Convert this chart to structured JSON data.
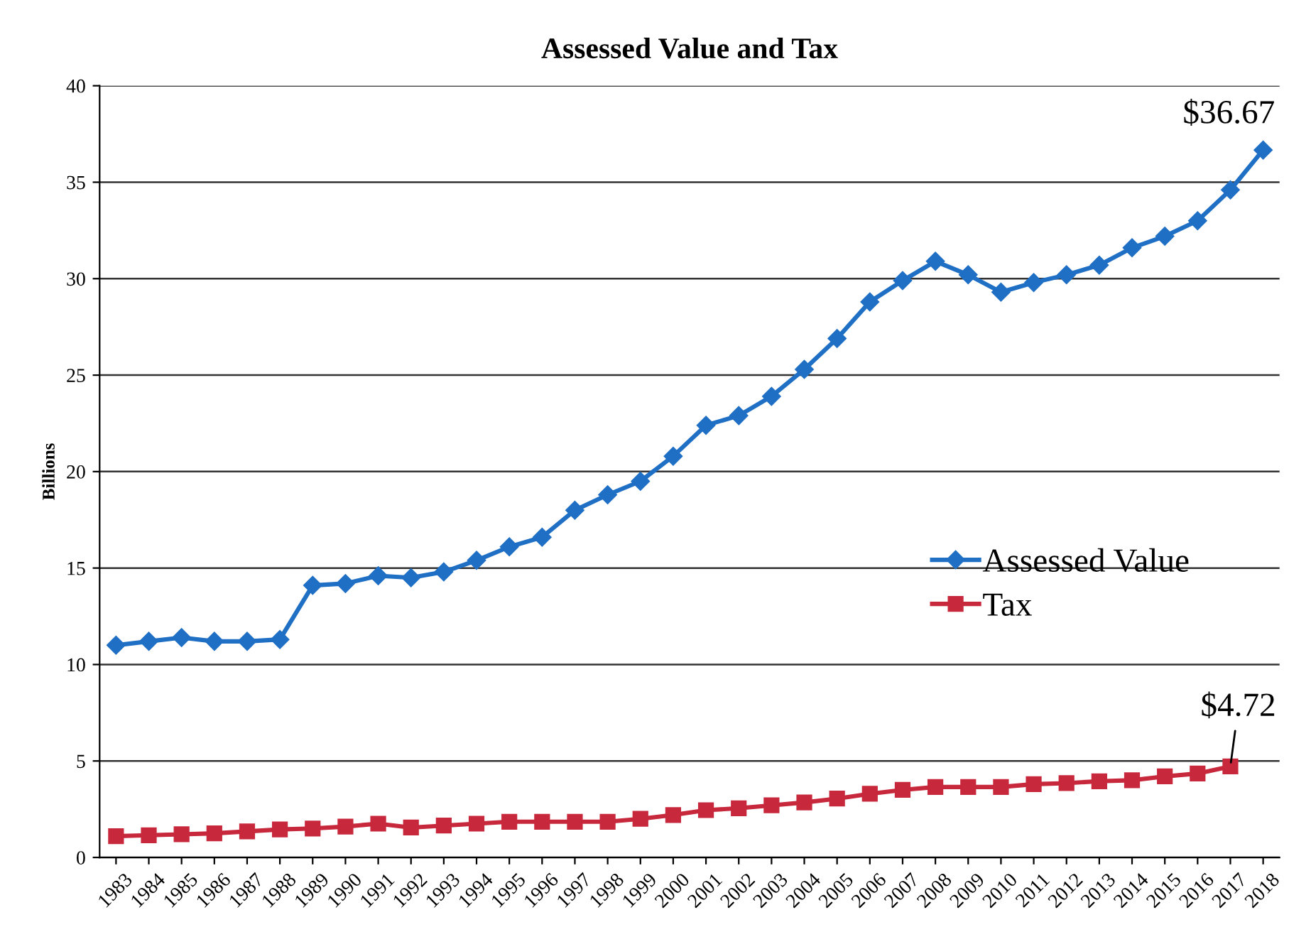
{
  "chart_data": {
    "type": "line",
    "title": "Assessed Value and Tax",
    "ylabel": "Billions",
    "categories": [
      "1983",
      "1984",
      "1985",
      "1986",
      "1987",
      "1988",
      "1989",
      "1990",
      "1991",
      "1992",
      "1993",
      "1994",
      "1995",
      "1996",
      "1997",
      "1998",
      "1999",
      "2000",
      "2001",
      "2002",
      "2003",
      "2004",
      "2005",
      "2006",
      "2007",
      "2008",
      "2009",
      "2010",
      "2011",
      "2012",
      "2013",
      "2014",
      "2015",
      "2016",
      "2017",
      "2018"
    ],
    "series": [
      {
        "name": "Assessed Value",
        "color": "#1f6fc5",
        "marker": "diamond",
        "values": [
          11.0,
          11.2,
          11.4,
          11.2,
          11.2,
          11.3,
          14.1,
          14.2,
          14.6,
          14.5,
          14.8,
          15.4,
          16.1,
          16.6,
          18.0,
          18.8,
          19.5,
          20.8,
          22.4,
          22.9,
          23.9,
          25.3,
          26.9,
          28.8,
          29.9,
          30.9,
          30.2,
          29.3,
          29.8,
          30.2,
          30.7,
          31.6,
          32.2,
          33.0,
          34.6,
          36.67
        ]
      },
      {
        "name": "Tax",
        "color": "#c8283c",
        "marker": "square",
        "values": [
          1.1,
          1.15,
          1.2,
          1.25,
          1.35,
          1.45,
          1.5,
          1.6,
          1.75,
          1.55,
          1.65,
          1.75,
          1.85,
          1.85,
          1.85,
          1.85,
          2.0,
          2.2,
          2.45,
          2.55,
          2.7,
          2.85,
          3.05,
          3.3,
          3.5,
          3.65,
          3.65,
          3.65,
          3.8,
          3.85,
          3.95,
          4.0,
          4.2,
          4.35,
          4.72,
          null
        ]
      }
    ],
    "annotations": [
      {
        "text": "$36.67",
        "x": "2018",
        "y": 36.67
      },
      {
        "text": "$4.72",
        "x": "2017",
        "y": 4.72
      }
    ],
    "ylim": [
      0,
      40
    ],
    "yticks": [
      0,
      5,
      10,
      15,
      20,
      25,
      30,
      35,
      40
    ],
    "grid": "y",
    "legend": "right"
  }
}
